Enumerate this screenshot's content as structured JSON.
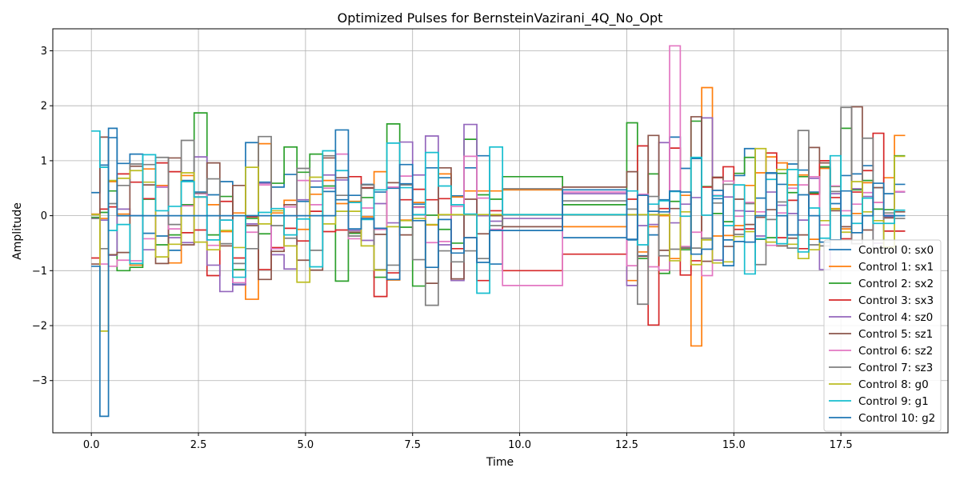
{
  "chart_data": {
    "type": "line",
    "step": "post",
    "title": "Optimized Pulses for BernsteinVazirani_4Q_No_Opt",
    "xlabel": "Time",
    "ylabel": "Amplitude",
    "xlim": [
      -0.9,
      20.0
    ],
    "ylim": [
      -3.95,
      3.4
    ],
    "grid": true,
    "legend_position": "lower-right",
    "xticks": [
      0.0,
      2.5,
      5.0,
      7.5,
      10.0,
      12.5,
      15.0,
      17.5
    ],
    "xtick_labels": [
      "0.0",
      "2.5",
      "5.0",
      "7.5",
      "10.0",
      "12.5",
      "15.0",
      "17.5"
    ],
    "yticks": [
      -3,
      -2,
      -1,
      0,
      1,
      2,
      3
    ],
    "ytick_labels": [
      "−3",
      "−2",
      "−1",
      "0",
      "1",
      "2",
      "3"
    ],
    "x": [
      0.0,
      0.2,
      0.4,
      0.6,
      0.9,
      1.2,
      1.5,
      1.8,
      2.1,
      2.4,
      2.7,
      3.0,
      3.3,
      3.6,
      3.9,
      4.2,
      4.5,
      4.8,
      5.1,
      5.4,
      5.7,
      6.0,
      6.3,
      6.6,
      6.9,
      7.2,
      7.5,
      7.8,
      8.1,
      8.4,
      8.7,
      9.0,
      9.3,
      9.6,
      11.0,
      12.5,
      12.75,
      13.0,
      13.25,
      13.5,
      13.75,
      14.0,
      14.25,
      14.5,
      14.75,
      15.0,
      15.25,
      15.5,
      15.75,
      16.0,
      16.25,
      16.5,
      16.75,
      17.0,
      17.25,
      17.5,
      17.75,
      18.0,
      18.25,
      18.5,
      18.75,
      19.0
    ],
    "series": [
      {
        "name": "Control 0: sx0",
        "color": "#1f77b4",
        "values": [
          0.42,
          0.92,
          1.42,
          0.95,
          1.12,
          -0.32,
          -0.37,
          -0.63,
          0.64,
          0.43,
          0.38,
          0.62,
          -1.25,
          1.33,
          0.61,
          0.52,
          0.75,
          0.26,
          0.52,
          0.44,
          0.29,
          0.37,
          0.57,
          0.43,
          0.5,
          0.58,
          0.21,
          0.87,
          0.69,
          0.36,
          0.87,
          1.09,
          -0.88,
          0.47,
          -0.4,
          -0.44,
          -0.73,
          -0.35,
          0.29,
          1.43,
          0.86,
          1.04,
          1.78,
          0.31,
          -0.44,
          0.73,
          1.22,
          0.32,
          0.77,
          0.57,
          0.94,
          0.83,
          0.43,
          0.87,
          0.22,
          0.73,
          0.76,
          0.91,
          0.51,
          0.4,
          0.57,
          0.57
        ]
      },
      {
        "name": "Control 1: sx1",
        "color": "#ff7f0e",
        "values": [
          0.03,
          -0.05,
          0.62,
          0.03,
          -0.9,
          0.85,
          0.55,
          -0.86,
          0.73,
          0.34,
          0.2,
          -0.29,
          0.05,
          -1.52,
          1.31,
          0.05,
          0.28,
          -0.25,
          0.39,
          0.64,
          0.22,
          0.26,
          -0.02,
          0.8,
          -1.17,
          -0.08,
          0.24,
          -0.17,
          0.76,
          0.34,
          0.45,
          0.45,
          0.45,
          0.47,
          -0.2,
          -1.18,
          -0.66,
          -0.2,
          0.0,
          -0.78,
          0.37,
          -2.37,
          2.33,
          -0.37,
          -0.36,
          -0.18,
          0.55,
          0.78,
          1.07,
          0.96,
          0.56,
          0.74,
          -0.43,
          0.86,
          0.13,
          -0.24,
          0.04,
          0.6,
          0.24,
          0.69,
          1.46,
          1.46
        ]
      },
      {
        "name": "Control 2: sx2",
        "color": "#2ca02c",
        "values": [
          -0.03,
          0.06,
          0.45,
          -1.0,
          -0.94,
          0.3,
          -0.53,
          -0.35,
          0.2,
          1.87,
          -0.35,
          0.35,
          -0.98,
          -0.05,
          -0.33,
          0.59,
          1.25,
          0.79,
          1.12,
          0.54,
          -1.19,
          -0.32,
          0.33,
          -1.12,
          1.67,
          -0.21,
          -1.28,
          0.01,
          -0.25,
          -0.5,
          1.39,
          0.38,
          0.3,
          0.71,
          0.2,
          1.69,
          -0.78,
          0.76,
          -1.05,
          0.26,
          -0.62,
          1.72,
          0.53,
          0.04,
          -0.11,
          0.77,
          1.06,
          -0.43,
          -0.4,
          0.77,
          0.42,
          0.71,
          0.41,
          0.89,
          0.53,
          1.59,
          0.47,
          0.64,
          0.12,
          0.11,
          1.09,
          1.09
        ]
      },
      {
        "name": "Control 3: sx3",
        "color": "#d62728",
        "values": [
          -0.77,
          0.12,
          0.16,
          0.76,
          0.61,
          0.31,
          0.96,
          0.8,
          -0.31,
          -0.26,
          -1.09,
          0.26,
          -0.77,
          -0.02,
          -0.98,
          -0.58,
          -0.23,
          -0.46,
          0.08,
          -0.29,
          -0.26,
          0.71,
          0.51,
          -1.47,
          -1.04,
          0.29,
          0.48,
          0.29,
          0.31,
          -0.6,
          -0.4,
          -1.18,
          0.09,
          -1.0,
          -0.7,
          0.3,
          1.27,
          -1.99,
          0.13,
          1.23,
          -1.08,
          -0.82,
          0.52,
          0.69,
          0.89,
          -0.25,
          -0.24,
          -0.42,
          1.14,
          -0.4,
          0.28,
          -0.6,
          0.39,
          1.0,
          0.33,
          -0.42,
          0.43,
          0.82,
          1.5,
          -0.28,
          -0.28,
          -0.28
        ]
      },
      {
        "name": "Control 4: sz0",
        "color": "#9467bd",
        "values": [
          -0.05,
          -0.08,
          -0.72,
          0.12,
          0.0,
          -0.62,
          0.52,
          -0.4,
          -0.49,
          1.07,
          -0.9,
          -1.38,
          -1.26,
          -0.15,
          0.59,
          -0.71,
          -0.97,
          0.29,
          0.63,
          0.74,
          0.65,
          -0.27,
          -0.45,
          0.22,
          -0.13,
          1.34,
          0.74,
          1.45,
          -0.53,
          -1.18,
          1.66,
          0.0,
          -0.1,
          -0.05,
          0.4,
          -1.27,
          -0.18,
          -0.16,
          1.33,
          -0.13,
          0.21,
          0.33,
          1.78,
          -0.81,
          0.34,
          0.09,
          0.08,
          -0.37,
          0.43,
          0.19,
          0.04,
          -0.08,
          0.68,
          -0.98,
          0.4,
          0.0,
          0.49,
          0.35,
          -0.5,
          -0.02,
          0.43,
          0.43
        ]
      },
      {
        "name": "Control 5: sz1",
        "color": "#8c564b",
        "values": [
          -0.88,
          1.43,
          -0.71,
          -0.67,
          0.9,
          0.56,
          -0.87,
          1.05,
          -0.53,
          0.34,
          0.96,
          -0.55,
          0.55,
          -0.18,
          -1.16,
          -0.65,
          0.2,
          -0.81,
          -0.99,
          1.05,
          0.69,
          -0.3,
          0.5,
          -0.34,
          0.6,
          -0.35,
          0.16,
          -1.23,
          0.87,
          -1.15,
          0.3,
          -0.33,
          0.0,
          -0.2,
          0.52,
          0.8,
          -0.74,
          1.46,
          -0.63,
          0.13,
          -0.59,
          1.8,
          -0.83,
          0.7,
          -0.56,
          0.3,
          -0.16,
          -0.03,
          0.11,
          -0.55,
          -0.41,
          -0.35,
          1.24,
          0.96,
          0.09,
          -0.2,
          1.98,
          -0.26,
          0.51,
          -0.04,
          0.07,
          0.07
        ]
      },
      {
        "name": "Control 6: sz2",
        "color": "#e377c2",
        "values": [
          0.02,
          -0.88,
          -0.92,
          -0.81,
          -0.82,
          -0.42,
          0.53,
          -0.24,
          0.18,
          0.4,
          -0.54,
          -0.08,
          -1.22,
          -0.3,
          0.56,
          -0.6,
          0.16,
          0.64,
          0.2,
          0.5,
          1.12,
          -0.42,
          0.14,
          -0.25,
          0.52,
          0.72,
          0.15,
          -0.49,
          -0.47,
          0.17,
          1.08,
          0.32,
          -0.25,
          -1.27,
          0.43,
          -0.91,
          0.39,
          -0.93,
          -0.99,
          3.09,
          -0.56,
          -0.3,
          -1.09,
          0.37,
          0.63,
          -0.01,
          0.24,
          0.07,
          -0.54,
          0.05,
          0.5,
          0.56,
          0.71,
          -0.17,
          0.54,
          0.09,
          0.21,
          0.42,
          0.24,
          0.01,
          0.44,
          0.44
        ]
      },
      {
        "name": "Control 7: sz3",
        "color": "#7f7f7f",
        "values": [
          -0.05,
          -0.6,
          0.22,
          0.55,
          0.94,
          0.93,
          1.06,
          -0.16,
          1.37,
          0.41,
          0.67,
          -0.51,
          -0.87,
          -0.6,
          1.44,
          -0.18,
          -0.41,
          0.86,
          -0.63,
          1.09,
          0.37,
          -0.37,
          0.56,
          -0.98,
          -0.9,
          0.56,
          -0.8,
          -1.63,
          -0.64,
          -0.84,
          -0.64,
          -0.78,
          -0.18,
          0.49,
          0.27,
          0.12,
          -1.61,
          0.35,
          -0.73,
          -0.61,
          -0.58,
          -0.59,
          -0.41,
          0.23,
          0.57,
          -0.34,
          0.22,
          -0.89,
          -0.07,
          0.25,
          -0.59,
          1.55,
          -0.53,
          -0.55,
          0.44,
          1.97,
          -0.51,
          1.41,
          -0.59,
          0.05,
          -0.05,
          -0.05
        ]
      },
      {
        "name": "Control 8: g0",
        "color": "#bcbd22",
        "values": [
          0.02,
          -2.1,
          0.64,
          0.68,
          0.82,
          0.61,
          -0.75,
          -0.52,
          0.78,
          -0.48,
          -0.62,
          -0.27,
          -0.58,
          0.88,
          -0.15,
          0.09,
          -0.55,
          -1.21,
          0.7,
          -0.15,
          0.08,
          0.08,
          -0.55,
          -0.99,
          -0.2,
          -0.09,
          -0.05,
          -0.16,
          0.02,
          0.02,
          0.02,
          0.02,
          0.02,
          0.02,
          0.02,
          0.02,
          0.02,
          0.02,
          0.02,
          -0.82,
          0.07,
          -0.89,
          -0.44,
          -0.86,
          -0.84,
          -0.38,
          -0.29,
          1.22,
          -0.48,
          0.84,
          -0.52,
          -0.78,
          -0.62,
          -0.09,
          0.12,
          -0.3,
          0.62,
          0.07,
          -0.09,
          -0.57,
          1.08,
          1.08
        ]
      },
      {
        "name": "Control 9: g1",
        "color": "#17becf",
        "values": [
          1.54,
          0.88,
          -0.27,
          -0.16,
          -0.87,
          1.11,
          0.09,
          0.17,
          0.62,
          0.34,
          -0.44,
          -0.08,
          -1.12,
          0.0,
          0.06,
          0.13,
          -0.35,
          -0.06,
          -0.93,
          1.18,
          0.82,
          0.24,
          -0.07,
          0.47,
          1.32,
          0.51,
          0.02,
          1.15,
          0.54,
          0.2,
          0.03,
          -1.41,
          1.25,
          0.02,
          0.02,
          0.45,
          -0.53,
          0.21,
          0.27,
          0.44,
          -0.01,
          1.06,
          0.01,
          0.36,
          -0.18,
          0.56,
          -1.06,
          -0.42,
          0.66,
          -0.51,
          0.84,
          -0.66,
          0.14,
          -0.41,
          1.09,
          0.0,
          -0.14,
          0.32,
          -0.14,
          -0.14,
          0.1,
          0.1
        ]
      },
      {
        "name": "Control 10: g2",
        "color": "#1f77b4",
        "values": [
          -0.92,
          -3.65,
          1.59,
          0.0,
          0.0,
          0.0,
          0.0,
          0.0,
          0.0,
          0.0,
          0.0,
          0.0,
          0.0,
          0.0,
          0.0,
          0.0,
          0.0,
          0.0,
          0.0,
          0.0,
          1.56,
          -0.24,
          -0.05,
          -0.23,
          -1.16,
          0.93,
          -0.09,
          -0.94,
          -0.07,
          -0.68,
          -0.4,
          -0.85,
          -0.27,
          -0.27,
          0.47,
          -0.43,
          0.37,
          0.08,
          0.07,
          0.45,
          0.43,
          -0.7,
          -0.61,
          0.46,
          -0.91,
          -0.47,
          -0.48,
          0.0,
          0.78,
          0.0,
          -0.35,
          0.38,
          0.0,
          -0.48,
          -0.44,
          0.45,
          -0.31,
          0.0,
          0.59,
          0.0,
          0.0,
          0.0
        ]
      }
    ]
  }
}
